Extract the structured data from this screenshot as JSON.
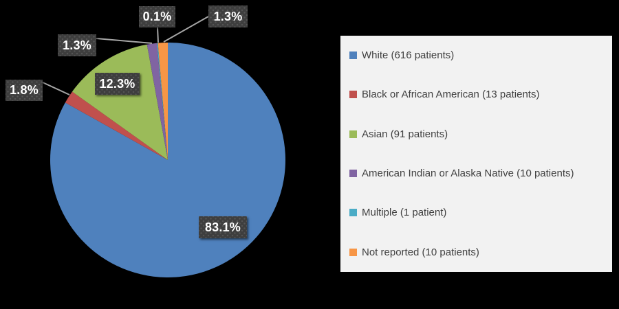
{
  "canvas": {
    "background": "#000000",
    "leader_line_color": "#A6A6A6",
    "callout_box_color": "#3E3E3E",
    "callout_text_color": "#FFFFFF"
  },
  "legend": {
    "background": "#F2F2F2",
    "text_color": "#404040",
    "position": "right"
  },
  "chart_data": {
    "type": "pie",
    "title": "",
    "legend_position": "right",
    "start_angle_deg": 0,
    "direction": "clockwise",
    "slices": [
      {
        "label": "White (616 patients)",
        "value": 616,
        "percent_label": "83.1%",
        "color": "#4F81BD"
      },
      {
        "label": "Black or African American (13 patients)",
        "value": 13,
        "percent_label": "1.8%",
        "color": "#C0504D"
      },
      {
        "label": "Asian (91 patients)",
        "value": 91,
        "percent_label": "12.3%",
        "color": "#9BBB59"
      },
      {
        "label": "American Indian or Alaska Native (10 patients)",
        "value": 10,
        "percent_label": "1.3%",
        "color": "#8064A2"
      },
      {
        "label": "Multiple (1 patient)",
        "value": 1,
        "percent_label": "0.1%",
        "color": "#4BACC6"
      },
      {
        "label": "Not reported (10 patients)",
        "value": 10,
        "percent_label": "1.3%",
        "color": "#F79646"
      }
    ]
  }
}
